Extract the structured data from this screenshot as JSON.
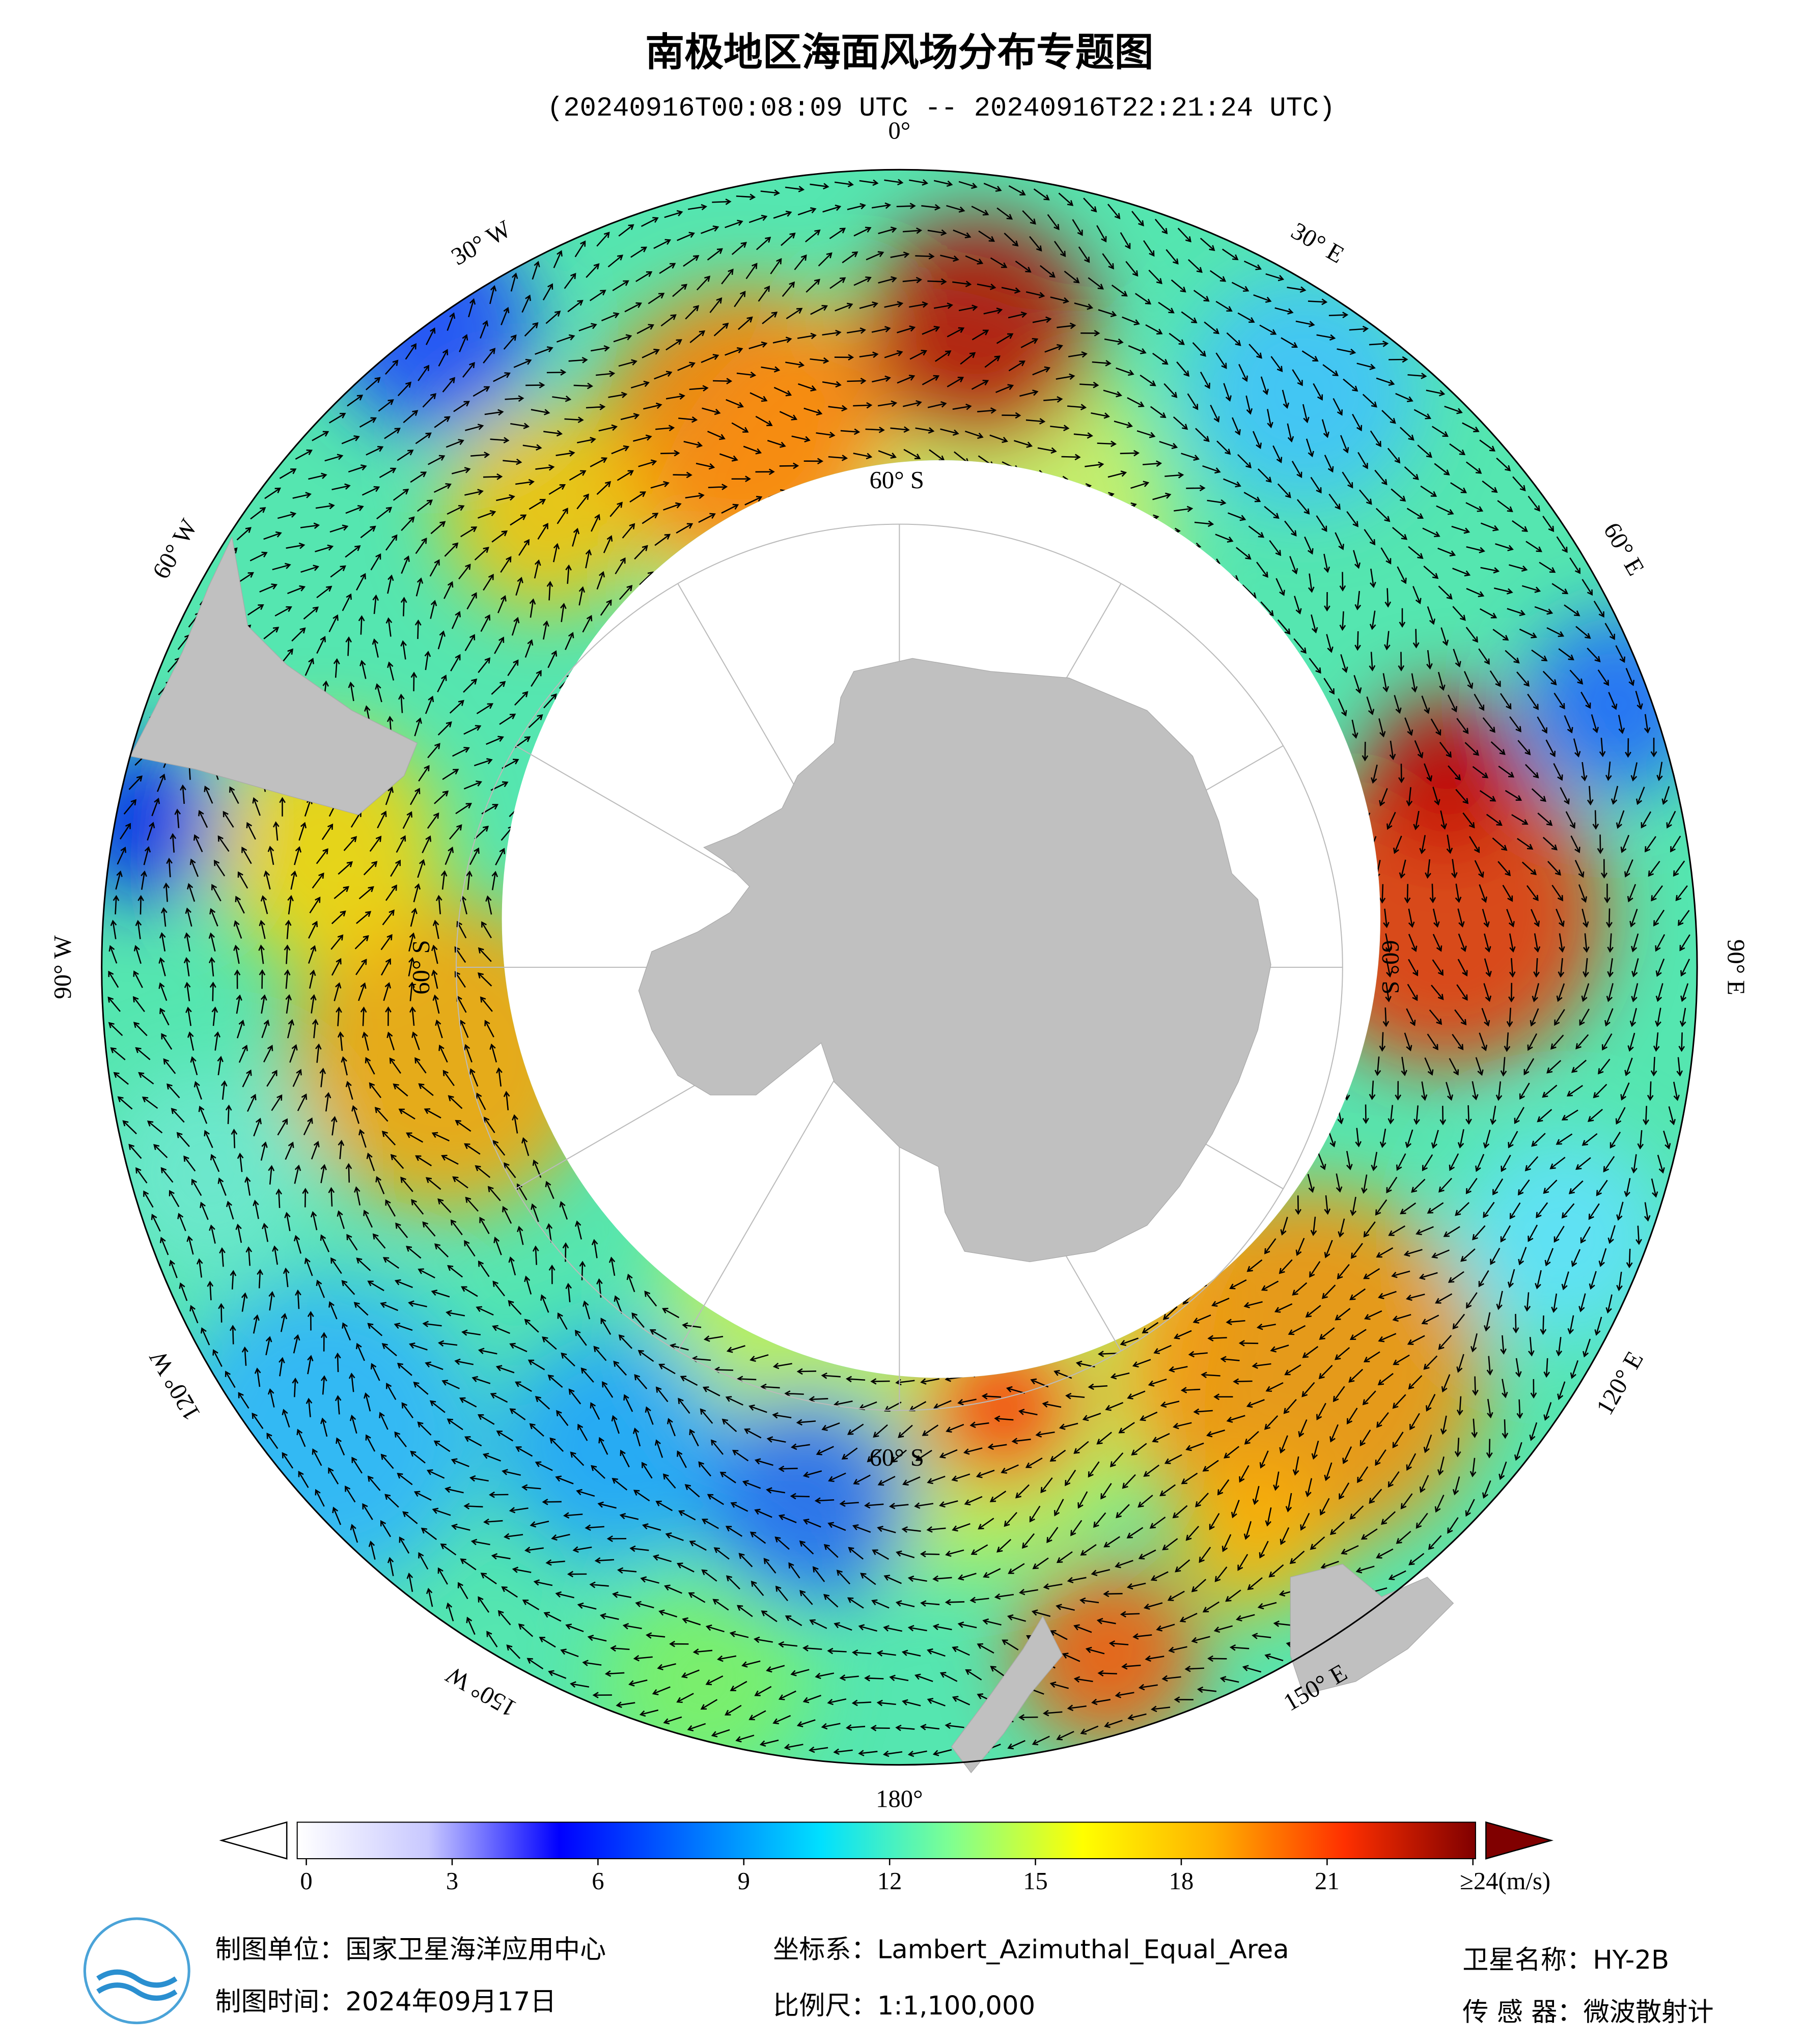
{
  "title": "南极地区海面风场分布专题图",
  "subtitle": "(20240916T00:08:09 UTC -- 20240916T22:21:24 UTC)",
  "longitude_labels": [
    "0°",
    "30° E",
    "60° E",
    "90° E",
    "120° E",
    "150° E",
    "180°",
    "150° W",
    "120° W",
    "90° W",
    "60° W",
    "30° W"
  ],
  "latitude_labels": [
    "60° S",
    "60° S",
    "60° S",
    "60° S"
  ],
  "colorbar": {
    "min": 0,
    "max": 24,
    "ticks": [
      0,
      3,
      6,
      9,
      12,
      15,
      18,
      21,
      {
        "value": 24,
        "label": "≥24(m/s)"
      }
    ],
    "colors": [
      "#ffffff",
      "#c8c8ff",
      "#0000ff",
      "#0070ff",
      "#00e0ff",
      "#80ff90",
      "#ffff00",
      "#ffb000",
      "#ff3000",
      "#800000"
    ]
  },
  "footer": {
    "unit": "制图单位：国家卫星海洋应用中心",
    "date": "制图时间：2024年09月17日",
    "crs": "坐标系：Lambert_Azimuthal_Equal_Area",
    "scale": "比例尺：1:1,100,000",
    "satellite": "卫星名称：HY-2B",
    "sensor": "传 感 器：微波散射计"
  }
}
